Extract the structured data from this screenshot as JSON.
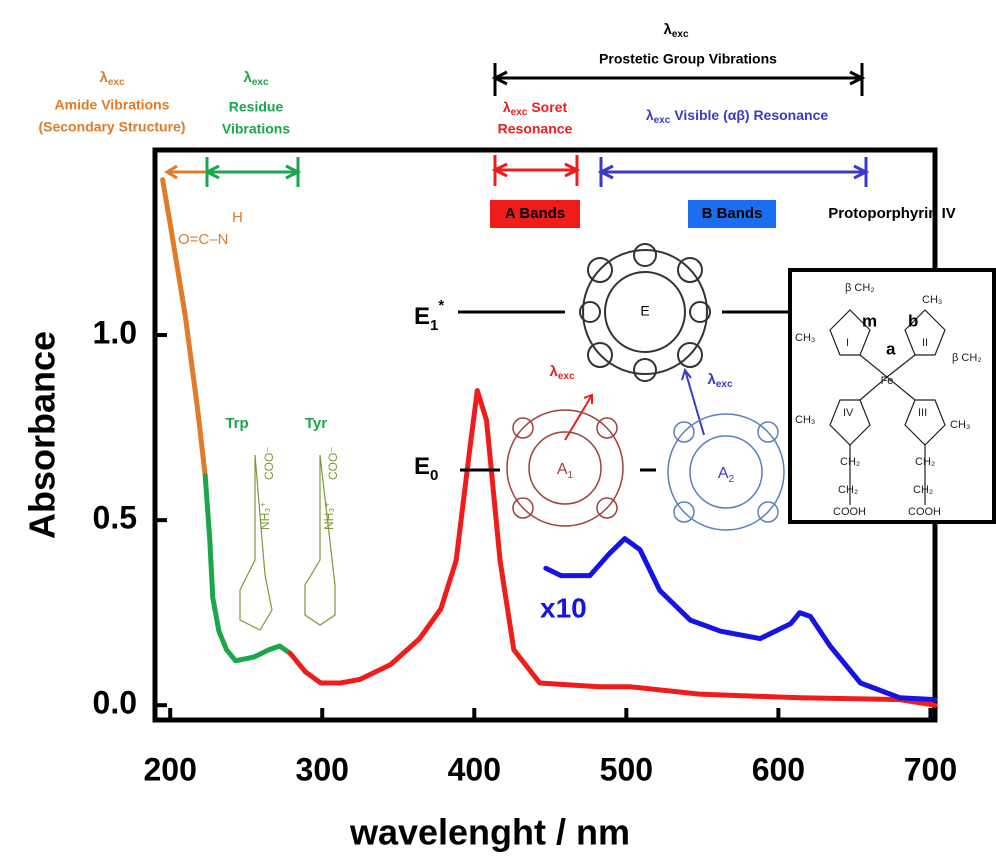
{
  "chart_data": {
    "type": "line",
    "xlabel": "wavelenght / nm",
    "ylabel": "Absorbance",
    "xlim": [
      190,
      703
    ],
    "ylim": [
      -0.04,
      1.5
    ],
    "xticks": [
      200,
      300,
      400,
      500,
      600,
      700
    ],
    "yticks": [
      {
        "value": 0,
        "label": "0.0"
      },
      {
        "value": 0.5,
        "label": "0.5"
      },
      {
        "value": 1,
        "label": "1.0"
      }
    ],
    "series": [
      {
        "color": "#e07b28",
        "x": [
          195,
          200,
          210,
          218,
          223
        ],
        "values": [
          1.42,
          1.3,
          1.05,
          0.8,
          0.62
        ]
      },
      {
        "color": "#1aa64a",
        "x": [
          223,
          226,
          228,
          232,
          237,
          243,
          255,
          265,
          272,
          279
        ],
        "values": [
          0.62,
          0.45,
          0.29,
          0.2,
          0.15,
          0.12,
          0.13,
          0.15,
          0.16,
          0.14
        ]
      },
      {
        "color": "#f01c1c",
        "x": [
          279,
          289,
          299,
          312,
          325,
          345,
          364,
          378,
          388,
          397,
          402,
          408,
          417,
          426,
          443,
          482,
          502,
          548,
          614,
          680,
          703
        ],
        "values": [
          0.14,
          0.09,
          0.06,
          0.06,
          0.07,
          0.11,
          0.18,
          0.26,
          0.39,
          0.69,
          0.85,
          0.77,
          0.39,
          0.15,
          0.06,
          0.05,
          0.05,
          0.03,
          0.02,
          0.015,
          0.0
        ]
      },
      {
        "color": "#1414e6",
        "x": [
          447,
          457,
          476,
          489,
          499,
          509,
          522,
          542,
          562,
          588,
          608,
          614,
          621,
          634,
          654,
          680,
          703
        ],
        "values": [
          0.37,
          0.35,
          0.35,
          0.41,
          0.45,
          0.42,
          0.31,
          0.23,
          0.2,
          0.18,
          0.22,
          0.25,
          0.24,
          0.16,
          0.06,
          0.02,
          0.015
        ]
      }
    ],
    "annotations": {
      "lambda": "λ",
      "exc": "exc",
      "prosthetic": "Prostetic Group Vibrations",
      "amide": [
        "Amide Vibrations",
        "(Secondary Structure)"
      ],
      "residue": [
        "Residue",
        "Vibrations"
      ],
      "soret": "Soret",
      "resonance": "Resonance",
      "visible": "Visible (αβ) Resonance",
      "a_bands": "A Bands",
      "b_bands": "B Bands",
      "protoporphyrin": "Protoporphyrin IV",
      "trp": "Trp",
      "tyr": "Tyr",
      "x10": "x10",
      "e": "E",
      "sub1": "1",
      "sub0": "0",
      "sub2": "2",
      "star": "*",
      "a": "A",
      "amide_struct": "O=C–N",
      "h": "H",
      "coo": "COO⁻",
      "nh3": "NH₃⁺",
      "fe": "Fe",
      "m": "m",
      "alpha_pos": "a",
      "beta_pos": "b",
      "ch3": "CH₃",
      "ch2": "CH₂",
      "cooh": "COOH",
      "beta_ch2": "β CH₂",
      "roman": [
        "I",
        "II",
        "III",
        "IV"
      ]
    }
  }
}
